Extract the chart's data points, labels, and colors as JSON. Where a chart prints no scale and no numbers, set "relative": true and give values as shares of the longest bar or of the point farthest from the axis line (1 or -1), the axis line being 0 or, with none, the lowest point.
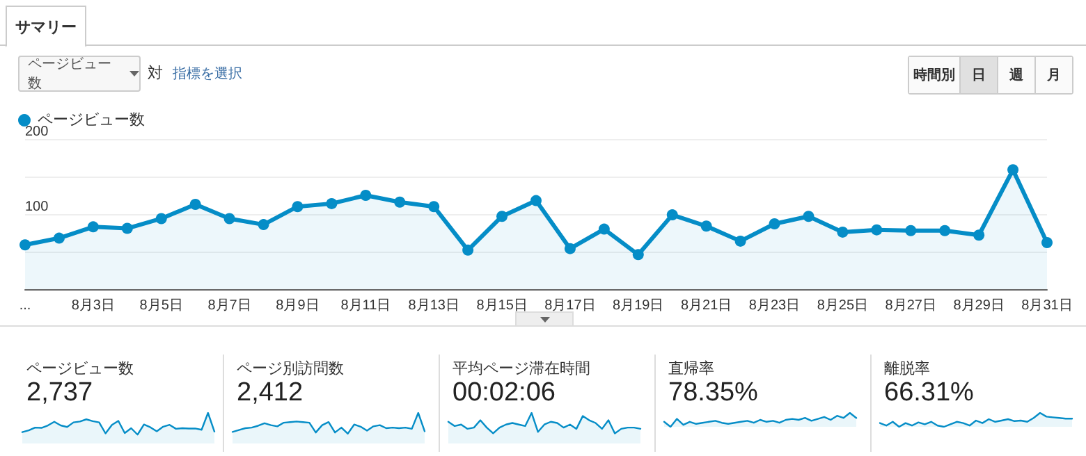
{
  "chart_data": [
    {
      "type": "area",
      "categories": [
        "...",
        null,
        "8月3日",
        null,
        "8月5日",
        null,
        "8月7日",
        null,
        "8月9日",
        null,
        "8月11日",
        null,
        "8月13日",
        null,
        "8月15日",
        null,
        "8月17日",
        null,
        "8月19日",
        null,
        "8月21日",
        null,
        "8月23日",
        null,
        "8月25日",
        null,
        "8月27日",
        null,
        "8月29日",
        null,
        "8月31日"
      ],
      "series": [
        {
          "name": "ページビュー数",
          "color": "#058dc7",
          "values": [
            59,
            68,
            83,
            81,
            94,
            113,
            94,
            86,
            110,
            114,
            125,
            116,
            110,
            52,
            97,
            118,
            54,
            80,
            46,
            99,
            84,
            64,
            87,
            97,
            76,
            79,
            78,
            78,
            72,
            159,
            62
          ]
        }
      ],
      "ylim": [
        0,
        200
      ],
      "yticks": [
        {
          "value": 0,
          "label": null
        },
        {
          "value": 50,
          "label": null
        },
        100,
        {
          "value": 150,
          "label": null
        },
        200
      ],
      "grid": "y",
      "legend": "top left",
      "marker": "circle",
      "annotations": [
        "サマリー",
        "ページビュー数",
        "対",
        "指標を選択",
        "時間別",
        "日",
        "週",
        "月"
      ]
    },
    {
      "type": "area",
      "title": "ページビュー数",
      "subtitle": "2,737",
      "relative": true,
      "color": "#058dc7",
      "categories": [
        null,
        null,
        null,
        null,
        null,
        null,
        null,
        null,
        null,
        null,
        null,
        null,
        null,
        null,
        null,
        null,
        null,
        null,
        null,
        null,
        null,
        null,
        null,
        null,
        null,
        null,
        null,
        null,
        null,
        null,
        null
      ],
      "values": [
        0.37,
        0.43,
        0.52,
        0.51,
        0.59,
        0.71,
        0.59,
        0.54,
        0.69,
        0.72,
        0.79,
        0.73,
        0.69,
        0.33,
        0.61,
        0.74,
        0.34,
        0.5,
        0.29,
        0.62,
        0.53,
        0.4,
        0.55,
        0.61,
        0.48,
        0.5,
        0.49,
        0.49,
        0.45,
        1,
        0.39
      ]
    },
    {
      "type": "area",
      "title": "ページ別訪問数",
      "subtitle": "2,412",
      "relative": true,
      "color": "#058dc7",
      "categories": [
        null,
        null,
        null,
        null,
        null,
        null,
        null,
        null,
        null,
        null,
        null,
        null,
        null,
        null,
        null,
        null,
        null,
        null,
        null,
        null,
        null,
        null,
        null,
        null,
        null,
        null,
        null,
        null,
        null,
        null,
        null
      ],
      "values": [
        0.38,
        0.44,
        0.5,
        0.52,
        0.58,
        0.66,
        0.6,
        0.56,
        0.68,
        0.7,
        0.72,
        0.7,
        0.68,
        0.36,
        0.6,
        0.7,
        0.36,
        0.52,
        0.32,
        0.62,
        0.55,
        0.42,
        0.56,
        0.6,
        0.5,
        0.52,
        0.5,
        0.52,
        0.48,
        1,
        0.4
      ]
    },
    {
      "type": "area",
      "title": "平均ページ滞在時間",
      "subtitle": "00:02:06",
      "relative": true,
      "color": "#058dc7",
      "categories": [
        null,
        null,
        null,
        null,
        null,
        null,
        null,
        null,
        null,
        null,
        null,
        null,
        null,
        null,
        null,
        null,
        null,
        null,
        null,
        null,
        null,
        null,
        null,
        null,
        null,
        null,
        null,
        null,
        null,
        null,
        null
      ],
      "values": [
        0.71,
        0.57,
        0.62,
        0.48,
        0.52,
        0.76,
        0.52,
        0.33,
        0.52,
        0.62,
        0.67,
        0.62,
        0.57,
        1,
        0.38,
        0.62,
        0.71,
        0.67,
        0.52,
        0.62,
        0.48,
        0.9,
        0.76,
        0.67,
        0.48,
        0.76,
        0.33,
        0.48,
        0.52,
        0.52,
        0.48
      ]
    },
    {
      "type": "area",
      "title": "直帰率",
      "subtitle": "78.35%",
      "relative": true,
      "color": "#058dc7",
      "categories": [
        null,
        null,
        null,
        null,
        null,
        null,
        null,
        null,
        null,
        null,
        null,
        null,
        null,
        null,
        null,
        null,
        null,
        null,
        null,
        null,
        null,
        null,
        null,
        null,
        null,
        null,
        null,
        null,
        null,
        null,
        null
      ],
      "values": [
        0.36,
        0,
        0.57,
        0.14,
        0.36,
        0.21,
        0.29,
        0.36,
        0.43,
        0.29,
        0.21,
        0.29,
        0.36,
        0.43,
        0.29,
        0.5,
        0.36,
        0.43,
        0.29,
        0.5,
        0.57,
        0.5,
        0.64,
        0.43,
        0.57,
        0.71,
        0.5,
        0.79,
        0.64,
        1,
        0.64
      ]
    },
    {
      "type": "area",
      "title": "離脱率",
      "subtitle": "66.31%",
      "relative": true,
      "color": "#058dc7",
      "categories": [
        null,
        null,
        null,
        null,
        null,
        null,
        null,
        null,
        null,
        null,
        null,
        null,
        null,
        null,
        null,
        null,
        null,
        null,
        null,
        null,
        null,
        null,
        null,
        null,
        null,
        null,
        null,
        null,
        null,
        null,
        null
      ],
      "values": [
        0.27,
        0.09,
        0.36,
        0,
        0.27,
        0.09,
        0.32,
        0.18,
        0.36,
        0.09,
        0,
        0.18,
        0.36,
        0.27,
        0.09,
        0.45,
        0.27,
        0.55,
        0.36,
        0.45,
        0.55,
        0.41,
        0.45,
        0.36,
        0.64,
        1,
        0.73,
        0.68,
        0.64,
        0.59,
        0.59
      ]
    }
  ]
}
